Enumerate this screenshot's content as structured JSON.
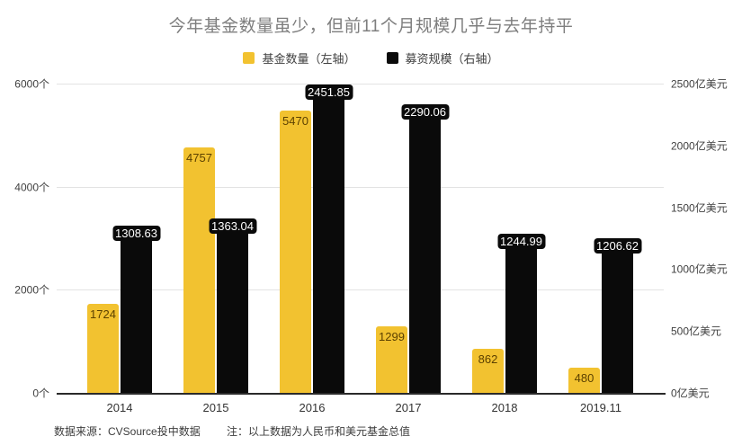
{
  "title": "今年基金数量虽少，但前11个月规模几乎与去年持平",
  "legend": [
    {
      "id": "fund-count",
      "label": "基金数量（左轴）",
      "color": "#F2C230"
    },
    {
      "id": "fundraising-scale",
      "label": "募资规模（右轴）",
      "color": "#0A0A0A"
    }
  ],
  "chart_data": {
    "type": "bar",
    "categories": [
      "2014",
      "2015",
      "2016",
      "2017",
      "2018",
      "2019.11"
    ],
    "series": [
      {
        "id": "fund-count",
        "name": "基金数量（左轴）",
        "axis": "left",
        "color": "#F2C230",
        "values": [
          1724,
          4757,
          5470,
          1299,
          862,
          480
        ]
      },
      {
        "id": "fundraising-scale",
        "name": "募资规模（右轴）",
        "axis": "right",
        "color": "#0A0A0A",
        "values": [
          1308.63,
          1363.04,
          2451.85,
          2290.06,
          1244.99,
          1206.62
        ]
      }
    ],
    "left_axis": {
      "max": 6000,
      "ticks": [
        {
          "value": 0,
          "label": "0个"
        },
        {
          "value": 2000,
          "label": "2000个"
        },
        {
          "value": 4000,
          "label": "4000个"
        },
        {
          "value": 6000,
          "label": "6000个"
        }
      ]
    },
    "right_axis": {
      "max": 2500,
      "ticks": [
        {
          "value": 0,
          "label": "0亿美元"
        },
        {
          "value": 500,
          "label": "500亿美元"
        },
        {
          "value": 1000,
          "label": "1000亿美元"
        },
        {
          "value": 1500,
          "label": "1500亿美元"
        },
        {
          "value": 2000,
          "label": "2000亿美元"
        },
        {
          "value": 2500,
          "label": "2500亿美元"
        }
      ]
    },
    "grid": true,
    "legend_position": "top"
  },
  "footer": {
    "source": "数据来源：CVSource投中数据",
    "note": "注：以上数据为人民币和美元基金总值"
  }
}
